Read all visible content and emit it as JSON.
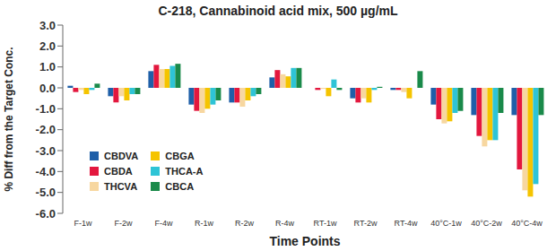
{
  "chart_data": {
    "type": "bar",
    "title": "C-218, Cannabinoid acid mix, 500 µg/mL",
    "x_label": "Time Points",
    "y_label": "% Diff from the Target Conc.",
    "categories": [
      "F-1w",
      "F-2w",
      "F-4w",
      "R-1w",
      "R-2w",
      "R-4w",
      "RT-1w",
      "RT-2w",
      "RT-4w",
      "40°C-1w",
      "40°C-2w",
      "40°C-4w"
    ],
    "series": [
      {
        "name": "CBDVA",
        "color": "#1f5fa8",
        "values": [
          0.1,
          -0.4,
          0.8,
          -0.8,
          -0.7,
          0.5,
          0.0,
          -0.5,
          -0.1,
          -0.8,
          -1.3,
          -1.3
        ]
      },
      {
        "name": "CBDA",
        "color": "#e3173e",
        "values": [
          -0.2,
          -0.7,
          1.1,
          -1.1,
          -0.7,
          0.85,
          -0.1,
          -0.7,
          -0.1,
          -1.5,
          -2.3,
          -3.9
        ]
      },
      {
        "name": "THCVA",
        "color": "#f7d7a0",
        "values": [
          -0.1,
          -0.4,
          0.9,
          -1.2,
          -0.9,
          0.65,
          -0.05,
          -0.5,
          -0.2,
          -1.7,
          -2.8,
          -4.9
        ]
      },
      {
        "name": "CBGA",
        "color": "#f5c400",
        "values": [
          -0.3,
          -0.6,
          0.9,
          -1.0,
          -0.6,
          0.55,
          -0.4,
          -0.7,
          -0.5,
          -1.6,
          -2.5,
          -5.2
        ]
      },
      {
        "name": "THCA-A",
        "color": "#2ec4d6",
        "values": [
          -0.1,
          -0.3,
          1.05,
          -0.8,
          -0.4,
          0.95,
          0.4,
          -0.1,
          0.0,
          -1.2,
          -2.5,
          -4.6
        ]
      },
      {
        "name": "CBCA",
        "color": "#1a8a4a",
        "values": [
          0.2,
          -0.3,
          1.15,
          -0.6,
          -0.3,
          0.95,
          -0.1,
          0.05,
          0.8,
          -1.1,
          -1.2,
          -1.3
        ]
      }
    ],
    "ylim": [
      -6,
      3
    ],
    "yticks": [
      {
        "value": -6,
        "label": "-6.0"
      },
      {
        "value": -5,
        "label": "-5.0"
      },
      {
        "value": -4,
        "label": "-4.0"
      },
      {
        "value": -3,
        "label": "-3.0"
      },
      {
        "value": -2,
        "label": "-2.0"
      },
      {
        "value": -1,
        "label": "-1.0"
      },
      {
        "value": 0,
        "label": "0.0"
      },
      {
        "value": 1,
        "label": "1.0"
      },
      {
        "value": 2,
        "label": "2.0"
      },
      {
        "value": 3,
        "label": "3.0"
      }
    ],
    "grid": false,
    "legend": "lower left"
  }
}
